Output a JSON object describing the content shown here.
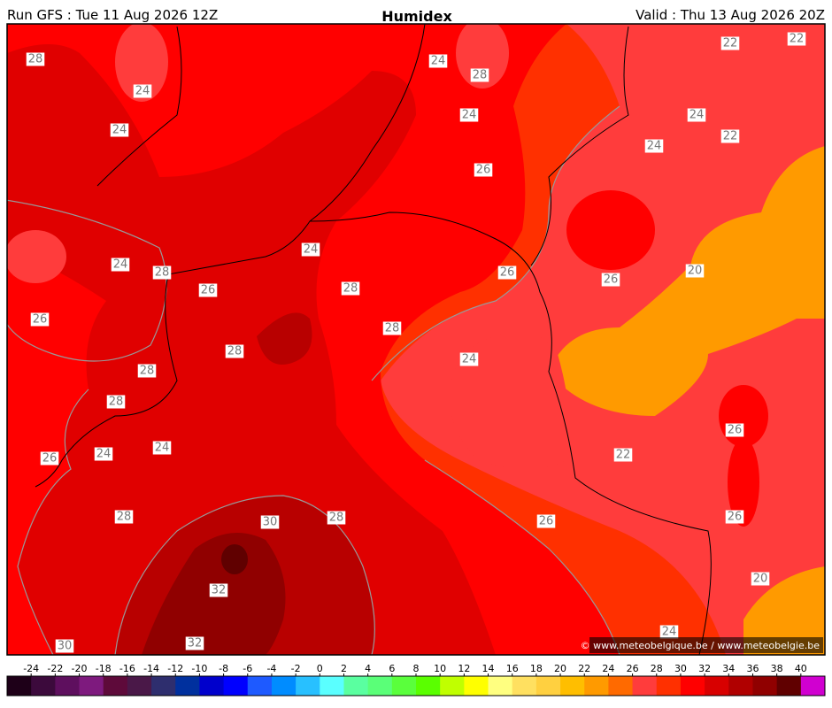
{
  "header": {
    "run": "Run GFS : Tue 11 Aug 2026 12Z",
    "title": "Humidex",
    "valid": "Valid : Thu 13 Aug 2026 20Z"
  },
  "contour_labels": [
    28,
    24,
    24,
    24,
    28,
    24,
    22,
    22,
    24,
    22,
    24,
    26,
    24,
    24,
    28,
    26,
    28,
    26,
    26,
    20,
    26,
    28,
    28,
    24,
    28,
    28,
    24,
    24,
    26,
    26,
    22,
    28,
    28,
    26,
    26,
    30,
    32,
    20,
    32,
    30,
    24
  ],
  "colorbar": {
    "ticks": [
      -24,
      -22,
      -20,
      -18,
      -16,
      -14,
      -12,
      -10,
      -8,
      -6,
      -4,
      -2,
      0,
      2,
      4,
      6,
      8,
      10,
      12,
      14,
      16,
      18,
      20,
      22,
      24,
      26,
      28,
      30,
      32,
      34,
      36,
      38,
      40
    ],
    "colors": [
      "#1e0018",
      "#3c0a3c",
      "#5e0f5e",
      "#7e1a7e",
      "#5e0a3a",
      "#4a1848",
      "#2e2e6e",
      "#00309e",
      "#0000cc",
      "#0000ff",
      "#1e5aff",
      "#008cff",
      "#28c0ff",
      "#5affff",
      "#5affa0",
      "#5aff78",
      "#5aff3c",
      "#5aff00",
      "#c0ff00",
      "#ffff00",
      "#ffff80",
      "#ffe060",
      "#ffd040",
      "#ffbe00",
      "#ff9a00",
      "#ff6a00",
      "#ff3c3c",
      "#ff3000",
      "#ff0000",
      "#d80000",
      "#b00000",
      "#900000",
      "#600000",
      "#d000d0"
    ]
  },
  "credit": "© www.meteobelgique.be / www.meteobelgie.be"
}
